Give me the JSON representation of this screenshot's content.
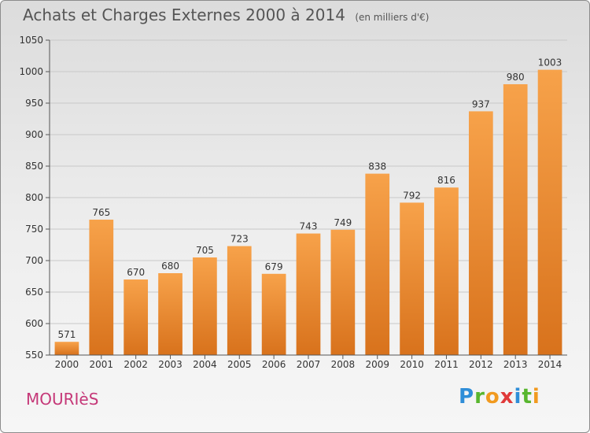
{
  "header": {
    "title": "Achats et Charges Externes 2000 à 2014",
    "subtitle": "(en milliers d'€)"
  },
  "footer": {
    "commune": "MOURIèS",
    "logo_letters": [
      {
        "ch": "P",
        "color": "#2f8ed8"
      },
      {
        "ch": "r",
        "color": "#58b62e"
      },
      {
        "ch": "o",
        "color": "#f19a1f"
      },
      {
        "ch": "x",
        "color": "#e03a3a"
      },
      {
        "ch": "i",
        "color": "#2f8ed8"
      },
      {
        "ch": "t",
        "color": "#58b62e"
      },
      {
        "ch": "i",
        "color": "#f19a1f"
      }
    ]
  },
  "chart_data": {
    "type": "bar",
    "categories": [
      "2000",
      "2001",
      "2002",
      "2003",
      "2004",
      "2005",
      "2006",
      "2007",
      "2008",
      "2009",
      "2010",
      "2011",
      "2012",
      "2013",
      "2014"
    ],
    "values": [
      571,
      765,
      670,
      680,
      705,
      723,
      679,
      743,
      749,
      838,
      792,
      816,
      937,
      980,
      1003
    ],
    "ylim": [
      550,
      1050
    ],
    "yticks": [
      550,
      600,
      650,
      700,
      750,
      800,
      850,
      900,
      950,
      1000,
      1050
    ],
    "grid": true,
    "colors": {
      "bar_top": "#f7a24a",
      "bar_bottom": "#d8721c",
      "grid": "#c8c8c8"
    }
  }
}
